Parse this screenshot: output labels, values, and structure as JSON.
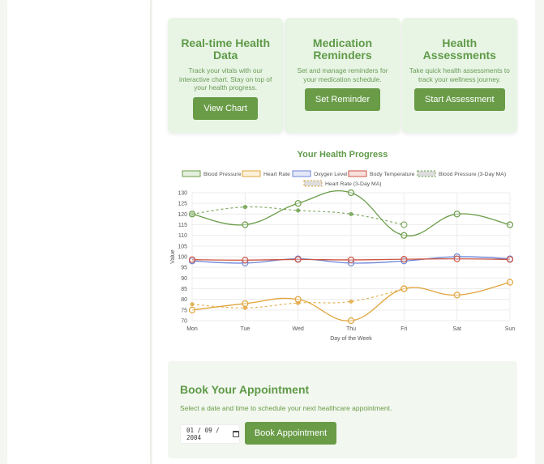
{
  "cards": [
    {
      "title": "Real-time Health Data",
      "description": "Track your vitals with our interactive chart. Stay on top of your health progress.",
      "button": "View Chart"
    },
    {
      "title": "Medication Reminders",
      "description": "Set and manage reminders for your medication schedule.",
      "button": "Set Reminder"
    },
    {
      "title": "Health Assessments",
      "description": "Take quick health assessments to track your wellness journey.",
      "button": "Start Assessment"
    }
  ],
  "chart": {
    "title": "Your Health Progress"
  },
  "chart_data": {
    "type": "line",
    "title": "Your Health Progress",
    "xlabel": "Day of the Week",
    "ylabel": "Value",
    "x": [
      "Mon",
      "Tue",
      "Wed",
      "Thu",
      "Fri",
      "Sat",
      "Sun"
    ],
    "ylim": [
      70,
      130
    ],
    "yticks": [
      70,
      75,
      80,
      85,
      90,
      95,
      100,
      105,
      110,
      115,
      120,
      125,
      130
    ],
    "grid": true,
    "legend_position": "top",
    "series": [
      {
        "name": "Blood Pressure",
        "color": "#6a9c48",
        "style": "solid",
        "values": [
          120,
          115,
          125,
          130,
          110,
          120,
          115
        ]
      },
      {
        "name": "Heart Rate",
        "color": "#e0a43a",
        "style": "solid",
        "values": [
          75,
          78,
          80,
          70,
          85,
          82,
          88
        ]
      },
      {
        "name": "Oxygen Level",
        "color": "#6a85d8",
        "style": "solid",
        "values": [
          98,
          97,
          99,
          97,
          98,
          100,
          99
        ]
      },
      {
        "name": "Body Temperature",
        "color": "#cc5544",
        "style": "solid",
        "values": [
          98.6,
          98.4,
          98.7,
          98.5,
          98.8,
          99.0,
          98.7
        ]
      },
      {
        "name": "Blood Pressure (3-Day MA)",
        "color": "#6a9c48",
        "style": "dashed",
        "values": [
          120,
          123.3,
          121.7,
          120,
          115,
          null,
          null
        ]
      },
      {
        "name": "Heart Rate (3-Day MA)",
        "color": "#e0a43a",
        "style": "dashed",
        "values": [
          77.7,
          76,
          78.3,
          79,
          85,
          null,
          null
        ]
      }
    ]
  },
  "booking": {
    "title": "Book Your Appointment",
    "description": "Select a date and time to schedule your next healthcare appointment.",
    "date_value": "01 / 09 / 2004",
    "button": "Book Appointment"
  }
}
